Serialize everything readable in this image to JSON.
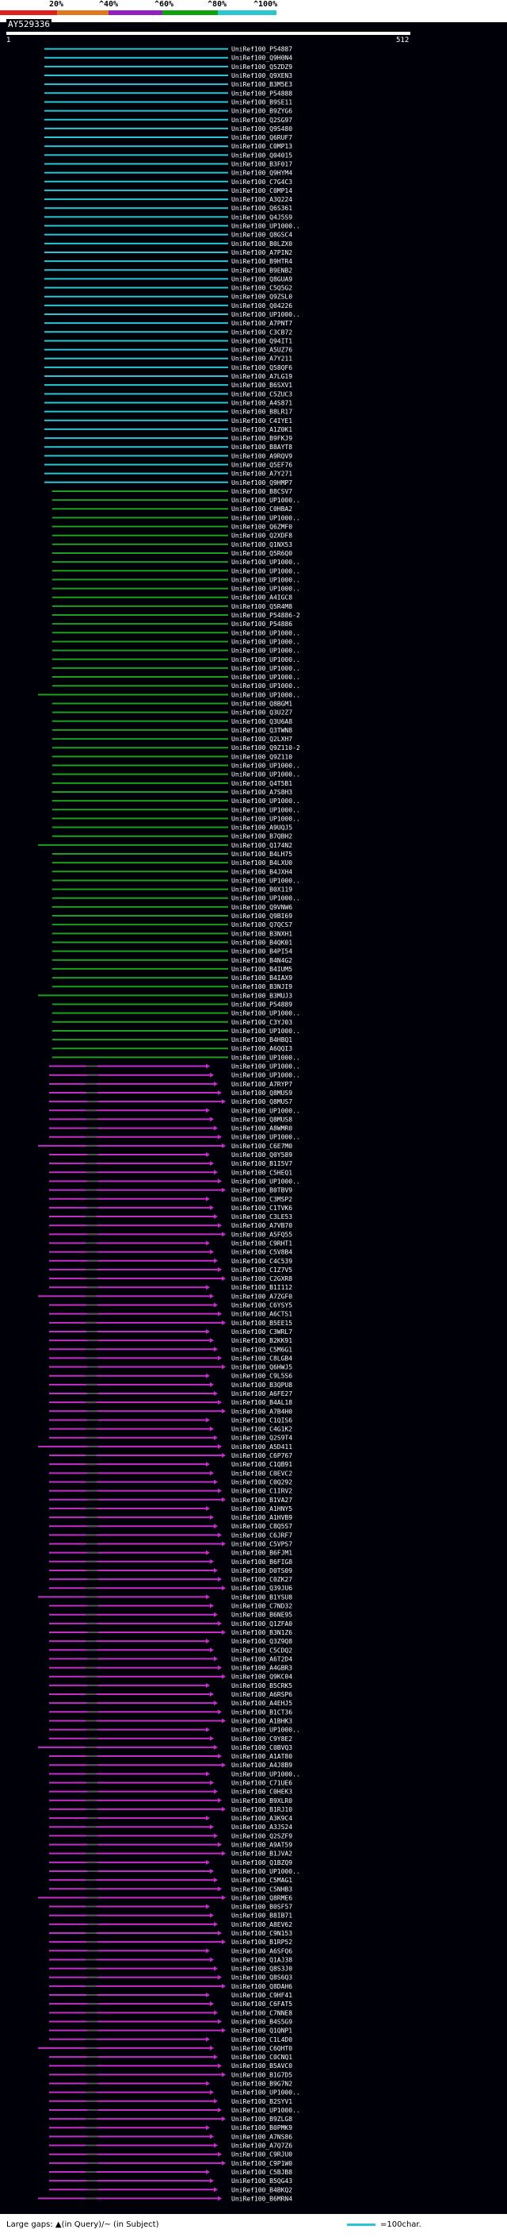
{
  "header": {
    "percent_labels": [
      "20%",
      "^40%",
      "^60%",
      "^80%",
      "^100%"
    ],
    "color_scale": [
      "#e0201c",
      "#e07820",
      "#9020c0",
      "#10a010",
      "#29c7d1"
    ],
    "query_id": "AY529336",
    "query_start": "1",
    "query_end": "512"
  },
  "colors": {
    "cyan": "#29c7d1",
    "green": "#1aa01a",
    "magenta": "#c82cc8",
    "background": "#000008",
    "gap_marker": "#505050"
  },
  "hits": [
    "UniRef100_P54887",
    "UniRef100_Q9H0N4",
    "UniRef100_Q5ZDZ9",
    "UniRef100_Q9XEN3",
    "UniRef100_B3M5E3",
    "UniRef100_P54888",
    "UniRef100_B9SE11",
    "UniRef100_B9ZYG6",
    "UniRef100_Q2SG97",
    "UniRef100_Q9S480",
    "UniRef100_Q6RUF7",
    "UniRef100_C0MP13",
    "UniRef100_Q04015",
    "UniRef100_B3F017",
    "UniRef100_Q9HYM4",
    "UniRef100_C7G4C3",
    "UniRef100_C0MP14",
    "UniRef100_A3Q224",
    "UniRef100_Q6S361",
    "UniRef100_Q4J5S9",
    "UniRef100_UP1000..",
    "UniRef100_Q8GSC4",
    "UniRef100_B0LZX0",
    "UniRef100_A7PIN2",
    "UniRef100_B9HTR4",
    "UniRef100_B9ENB2",
    "UniRef100_Q8GUA9",
    "UniRef100_C5Q5G2",
    "UniRef100_Q9ZSL0",
    "UniRef100_Q04226",
    "UniRef100_UP1000..",
    "UniRef100_A7PNT7",
    "UniRef100_C3CB72",
    "UniRef100_Q94IT1",
    "UniRef100_A5UZ76",
    "UniRef100_A7Y211",
    "UniRef100_Q58QF6",
    "UniRef100_A7LG19",
    "UniRef100_B6SXV1",
    "UniRef100_C5ZUC3",
    "UniRef100_A4S871",
    "UniRef100_B8LR17",
    "UniRef100_C4IYE1",
    "UniRef100_A1Z0K1",
    "UniRef100_B9FKJ9",
    "UniRef100_B8AYT8",
    "UniRef100_A9RQV9",
    "UniRef100_Q5EF76",
    "UniRef100_A7Y271",
    "UniRef100_Q9HMP7",
    "UniRef100_B8CSV7",
    "UniRef100_UP1000..",
    "UniRef100_C0HBA2",
    "UniRef100_UP1000..",
    "UniRef100_Q6ZMF0",
    "UniRef100_Q2XDF8",
    "UniRef100_Q1NX53",
    "UniRef100_Q5R6Q0",
    "UniRef100_UP1000..",
    "UniRef100_UP1000..",
    "UniRef100_UP1000..",
    "UniRef100_UP1000..",
    "UniRef100_A4IGC8",
    "UniRef100_Q5R4M8",
    "UniRef100_P54886-2",
    "UniRef100_P54886",
    "UniRef100_UP1000..",
    "UniRef100_UP1000..",
    "UniRef100_UP1000..",
    "UniRef100_UP1000..",
    "UniRef100_UP1000..",
    "UniRef100_UP1000..",
    "UniRef100_UP1000..",
    "UniRef100_UP1000..",
    "UniRef100_Q8BGM1",
    "UniRef100_Q3U2Z7",
    "UniRef100_Q3U6A8",
    "UniRef100_Q3TWN8",
    "UniRef100_Q2LXH7",
    "UniRef100_Q9Z110-2",
    "UniRef100_Q9Z110",
    "UniRef100_UP1000..",
    "UniRef100_UP1000..",
    "UniRef100_Q4T5B1",
    "UniRef100_A7S8H3",
    "UniRef100_UP1000..",
    "UniRef100_UP1000..",
    "UniRef100_UP1000..",
    "UniRef100_A9UQJ5",
    "UniRef100_B7QBH2",
    "UniRef100_Q174N2",
    "UniRef100_B4LH75",
    "UniRef100_B4LXU0",
    "UniRef100_B4JXH4",
    "UniRef100_UP1000..",
    "UniRef100_B0X119",
    "UniRef100_UP1000..",
    "UniRef100_Q9VNW6",
    "UniRef100_Q9BI69",
    "UniRef100_Q7QCS7",
    "UniRef100_B3NXH1",
    "UniRef100_B4QK01",
    "UniRef100_B4PI54",
    "UniRef100_B4N4G2",
    "UniRef100_B4IUM5",
    "UniRef100_B4IAX9",
    "UniRef100_B3NJI9",
    "UniRef100_B3MUJ3",
    "UniRef100_P54889",
    "UniRef100_UP1000..",
    "UniRef100_C3YJ03",
    "UniRef100_UP1000..",
    "UniRef100_B4HBQ1",
    "UniRef100_A6QQI3",
    "UniRef100_UP1000..",
    "UniRef100_UP1000..",
    "UniRef100_UP1000..",
    "UniRef100_A7RYP7",
    "UniRef100_Q8MUS9",
    "UniRef100_Q8MUS7",
    "UniRef100_UP1000..",
    "UniRef100_Q8MUS8",
    "UniRef100_A8WMR0",
    "UniRef100_UP1000..",
    "UniRef100_C6E7M0",
    "UniRef100_Q0Y589",
    "UniRef100_B1I5V7",
    "UniRef100_C5HEQ1",
    "UniRef100_UP1000..",
    "UniRef100_B0TBV9",
    "UniRef100_C3MSP2",
    "UniRef100_C1TVK6",
    "UniRef100_C3LE53",
    "UniRef100_A7VB70",
    "UniRef100_A5FQ55",
    "UniRef100_C9RHT1",
    "UniRef100_C5V8B4",
    "UniRef100_C4C539",
    "UniRef100_C1Z7V5",
    "UniRef100_C2GXR8",
    "UniRef100_B1I112",
    "UniRef100_A7ZGF0",
    "UniRef100_C6YSY5",
    "UniRef100_A6CTS1",
    "UniRef100_B5EE15",
    "UniRef100_C3WRL7",
    "UniRef100_B2KK91",
    "UniRef100_C5M6G1",
    "UniRef100_C8LGB4",
    "UniRef100_Q6HWJ5",
    "UniRef100_C9L5S6",
    "UniRef100_B3QPU8",
    "UniRef100_A6FE27",
    "UniRef100_B4AL18",
    "UniRef100_A7B4H0",
    "UniRef100_C1QIS6",
    "UniRef100_C4G1K2",
    "UniRef100_Q2S9T4",
    "UniRef100_A5D411",
    "UniRef100_C6P767",
    "UniRef100_C1QB91",
    "UniRef100_C0EVC2",
    "UniRef100_C0Q292",
    "UniRef100_C1IRV2",
    "UniRef100_B1VA27",
    "UniRef100_A1HNY5",
    "UniRef100_A1HVB9",
    "UniRef100_C8Q5S7",
    "UniRef100_C6JRF7",
    "UniRef100_C5VPS7",
    "UniRef100_B6FJM1",
    "UniRef100_B6FIG8",
    "UniRef100_D0TS09",
    "UniRef100_C0ZK27",
    "UniRef100_Q39JU6",
    "UniRef100_B1YSU8",
    "UniRef100_C7ND32",
    "UniRef100_B6NE95",
    "UniRef100_Q1ZFA0",
    "UniRef100_B3N1Z6",
    "UniRef100_Q3Z9Q8",
    "UniRef100_C5CDQ2",
    "UniRef100_A6T2D4",
    "UniRef100_A4GBR3",
    "UniRef100_Q9KC04",
    "UniRef100_B5CRK5",
    "UniRef100_A6RSP6",
    "UniRef100_A4EHJ5",
    "UniRef100_B1CT36",
    "UniRef100_A1BHK3",
    "UniRef100_UP1000..",
    "UniRef100_C9Y8E2",
    "UniRef100_C0BVQ3",
    "UniRef100_A1AT80",
    "UniRef100_A4J8B9",
    "UniRef100_UP1000..",
    "UniRef100_C71UE6",
    "UniRef100_C0HEK3",
    "UniRef100_B9XLR0",
    "UniRef100_B1RJ10",
    "UniRef100_A3K9C4",
    "UniRef100_A3JS24",
    "UniRef100_Q2SZF9",
    "UniRef100_A9AT59",
    "UniRef100_B1JVA2",
    "UniRef100_Q1BZQ9",
    "UniRef100_UP1000..",
    "UniRef100_C5MAG1",
    "UniRef100_C5NHB3",
    "UniRef100_Q8RME6",
    "UniRef100_B0SF57",
    "UniRef100_B8IB71",
    "UniRef100_A8EV62",
    "UniRef100_C9N153",
    "UniRef100_B1RP52",
    "UniRef100_A6SFQ6",
    "UniRef100_Q1AJ38",
    "UniRef100_Q8S3J0",
    "UniRef100_Q8S6Q3",
    "UniRef100_Q8DAH6",
    "UniRef100_C9HF41",
    "UniRef100_C6FAT5",
    "UniRef100_C7NNE8",
    "UniRef100_B4S5G9",
    "UniRef100_Q1QNP1",
    "UniRef100_C1L4D0",
    "UniRef100_C6QHT0",
    "UniRef100_C0CNQ1",
    "UniRef100_B5AVC0",
    "UniRef100_B1G7D5",
    "UniRef100_B9G7N2",
    "UniRef100_UP1000..",
    "UniRef100_B2SYV1",
    "UniRef100_UP1000..",
    "UniRef100_B9ZLG8",
    "UniRef100_B0PMK9",
    "UniRef100_A7NS86",
    "UniRef100_A7Q7Z6",
    "UniRef100_C9RJU0",
    "UniRef100_C9P1W0",
    "UniRef100_C5BJB8",
    "UniRef100_B5QG43",
    "UniRef100_B4BKQ2",
    "UniRef100_B6MRN4"
  ],
  "footer": {
    "large_gaps": "Large gaps: ▲(in Query)/~ (in Subject)",
    "scale_note": "=100char."
  }
}
